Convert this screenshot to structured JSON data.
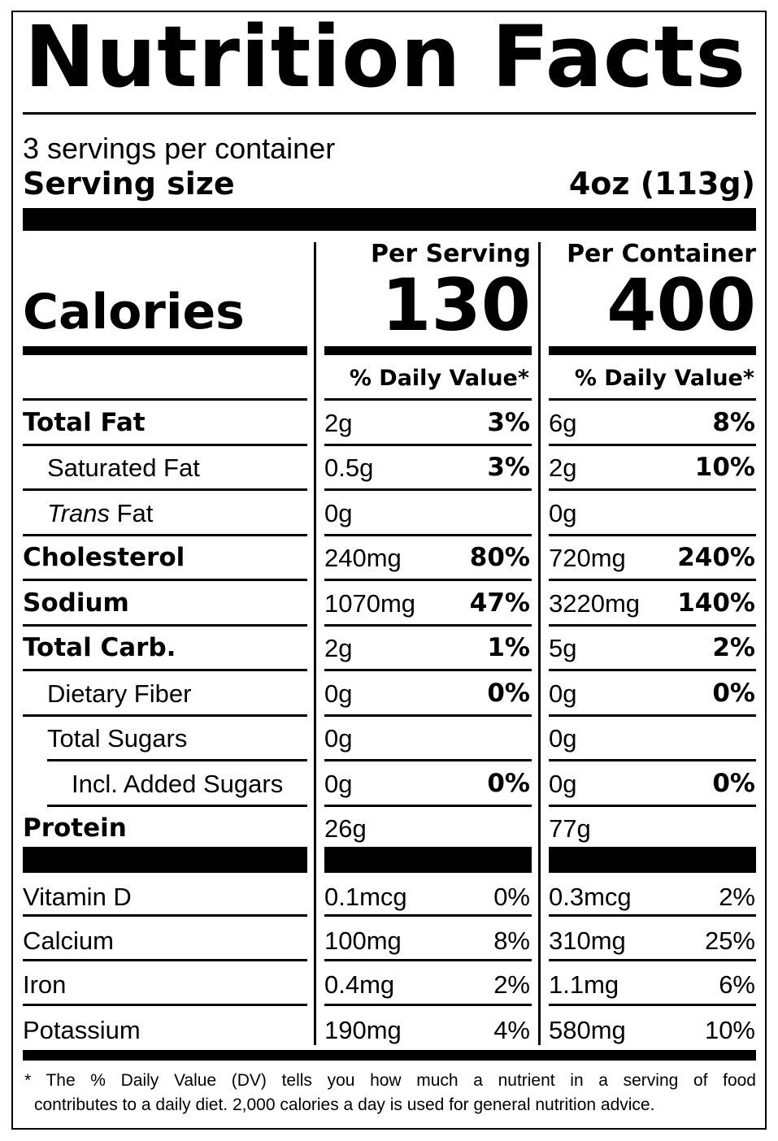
{
  "label": {
    "title": "Nutrition Facts",
    "servings_per_container": "3 servings per container",
    "serving_size_label": "Serving size",
    "serving_size_value": "4oz (113g)",
    "calories_label": "Calories",
    "per_serving_header": "Per Serving",
    "per_container_header": "Per Container",
    "calories_per_serving": "130",
    "calories_per_container": "400",
    "dv_header": "% Daily Value*"
  },
  "nutrients": [
    {
      "name": "Total Fat",
      "style": "bold",
      "s_amt": "2g",
      "s_dv": "3%",
      "c_amt": "6g",
      "c_dv": "8%"
    },
    {
      "name": "Saturated Fat",
      "style": "indent",
      "s_amt": "0.5g",
      "s_dv": "3%",
      "c_amt": "2g",
      "c_dv": "10%"
    },
    {
      "name_italic": "Trans",
      "name": " Fat",
      "style": "indent",
      "s_amt": "0g",
      "s_dv": "",
      "c_amt": "0g",
      "c_dv": ""
    },
    {
      "name": "Cholesterol",
      "style": "bold",
      "s_amt": "240mg",
      "s_dv": "80%",
      "c_amt": "720mg",
      "c_dv": "240%"
    },
    {
      "name": "Sodium",
      "style": "bold",
      "s_amt": "1070mg",
      "s_dv": "47%",
      "c_amt": "3220mg",
      "c_dv": "140%"
    },
    {
      "name": "Total Carb.",
      "style": "bold",
      "s_amt": "2g",
      "s_dv": "1%",
      "c_amt": "5g",
      "c_dv": "2%"
    },
    {
      "name": "Dietary Fiber",
      "style": "indent",
      "s_amt": "0g",
      "s_dv": "0%",
      "c_amt": "0g",
      "c_dv": "0%"
    },
    {
      "name": "Total Sugars",
      "style": "indent",
      "s_amt": "0g",
      "s_dv": "",
      "c_amt": "0g",
      "c_dv": ""
    },
    {
      "name": "Incl. Added Sugars",
      "style": "indent2",
      "s_amt": "0g",
      "s_dv": "0%",
      "c_amt": "0g",
      "c_dv": "0%"
    },
    {
      "name": "Protein",
      "style": "bold",
      "s_amt": "26g",
      "s_dv": "",
      "c_amt": "77g",
      "c_dv": ""
    }
  ],
  "vitamins": [
    {
      "name": "Vitamin D",
      "s_amt": "0.1mcg",
      "s_dv": "0%",
      "c_amt": "0.3mcg",
      "c_dv": "2%"
    },
    {
      "name": "Calcium",
      "s_amt": "100mg",
      "s_dv": "8%",
      "c_amt": "310mg",
      "c_dv": "25%"
    },
    {
      "name": "Iron",
      "s_amt": "0.4mg",
      "s_dv": "2%",
      "c_amt": "1.1mg",
      "c_dv": "6%"
    },
    {
      "name": "Potassium",
      "s_amt": "190mg",
      "s_dv": "4%",
      "c_amt": "580mg",
      "c_dv": "10%"
    }
  ],
  "footnote": {
    "line1": "The % Daily Value (DV) tells you how much a nutrient in a serving of food",
    "line2": "contributes to a daily diet. 2,000 calories a day is used for general nutrition advice.",
    "asterisk": "*"
  }
}
